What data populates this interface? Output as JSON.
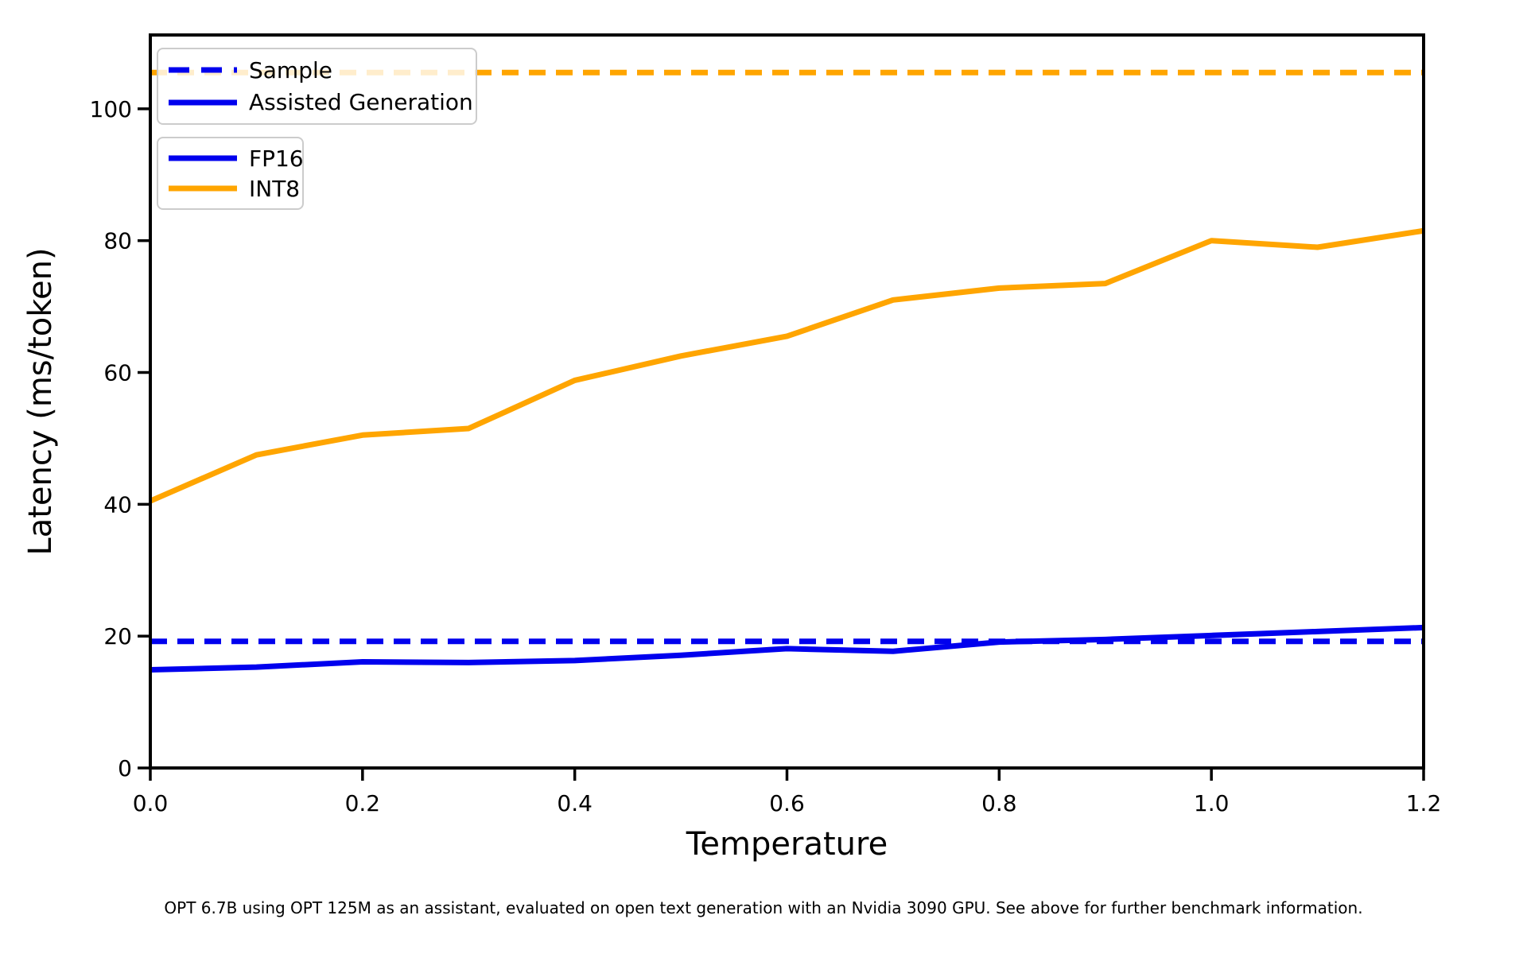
{
  "chart_data": {
    "type": "line",
    "title": "",
    "xlabel": "Temperature",
    "ylabel": "Latency (ms/token)",
    "xlim": [
      0,
      1.2
    ],
    "ylim": [
      0,
      111.2
    ],
    "grid": false,
    "legend_position": "upper left",
    "x": [
      0.0,
      0.1,
      0.2,
      0.3,
      0.4,
      0.5,
      0.6,
      0.7,
      0.8,
      0.9,
      1.0,
      1.1,
      1.2
    ],
    "series": [
      {
        "name": "FP16 Assisted Generation",
        "precision": "FP16",
        "mode": "Assisted Generation",
        "style": "solid",
        "color": "#0000EE",
        "values": [
          14.9,
          15.3,
          16.1,
          16.0,
          16.3,
          17.1,
          18.1,
          17.7,
          19.1,
          19.5,
          20.1,
          20.7,
          21.3
        ]
      },
      {
        "name": "INT8 Assisted Generation",
        "precision": "INT8",
        "mode": "Assisted Generation",
        "style": "solid",
        "color": "#FFA500",
        "values": [
          40.5,
          47.5,
          50.5,
          51.5,
          58.8,
          62.5,
          65.5,
          71.0,
          72.8,
          73.5,
          80.0,
          79.0,
          81.5
        ]
      }
    ],
    "hlines": [
      {
        "name": "FP16 Sample",
        "precision": "FP16",
        "mode": "Sample",
        "style": "dashed",
        "color": "#0000EE",
        "y": 19.2
      },
      {
        "name": "INT8 Sample",
        "precision": "INT8",
        "mode": "Sample",
        "style": "dashed",
        "color": "#FFA500",
        "y": 105.5
      }
    ],
    "xticks": [
      "0.0",
      "0.2",
      "0.4",
      "0.6",
      "0.8",
      "1.0",
      "1.2"
    ],
    "yticks": [
      "0",
      "20",
      "40",
      "60",
      "80",
      "100"
    ]
  },
  "legends": {
    "line_style": {
      "items": [
        {
          "label": "Sample",
          "color": "#0000EE",
          "dash": true
        },
        {
          "label": "Assisted Generation",
          "color": "#0000EE",
          "dash": false
        }
      ]
    },
    "precision": {
      "items": [
        {
          "label": "FP16",
          "color": "#0000EE",
          "dash": false
        },
        {
          "label": "INT8",
          "color": "#FFA500",
          "dash": false
        }
      ]
    }
  },
  "caption": "OPT 6.7B using OPT 125M as an assistant, evaluated on open text generation with an Nvidia 3090 GPU. See above for further benchmark information.",
  "colors": {
    "fp16": "#0000EE",
    "int8": "#FFA500",
    "axis": "#000000",
    "legend_border": "#cccccc",
    "background": "#ffffff"
  }
}
